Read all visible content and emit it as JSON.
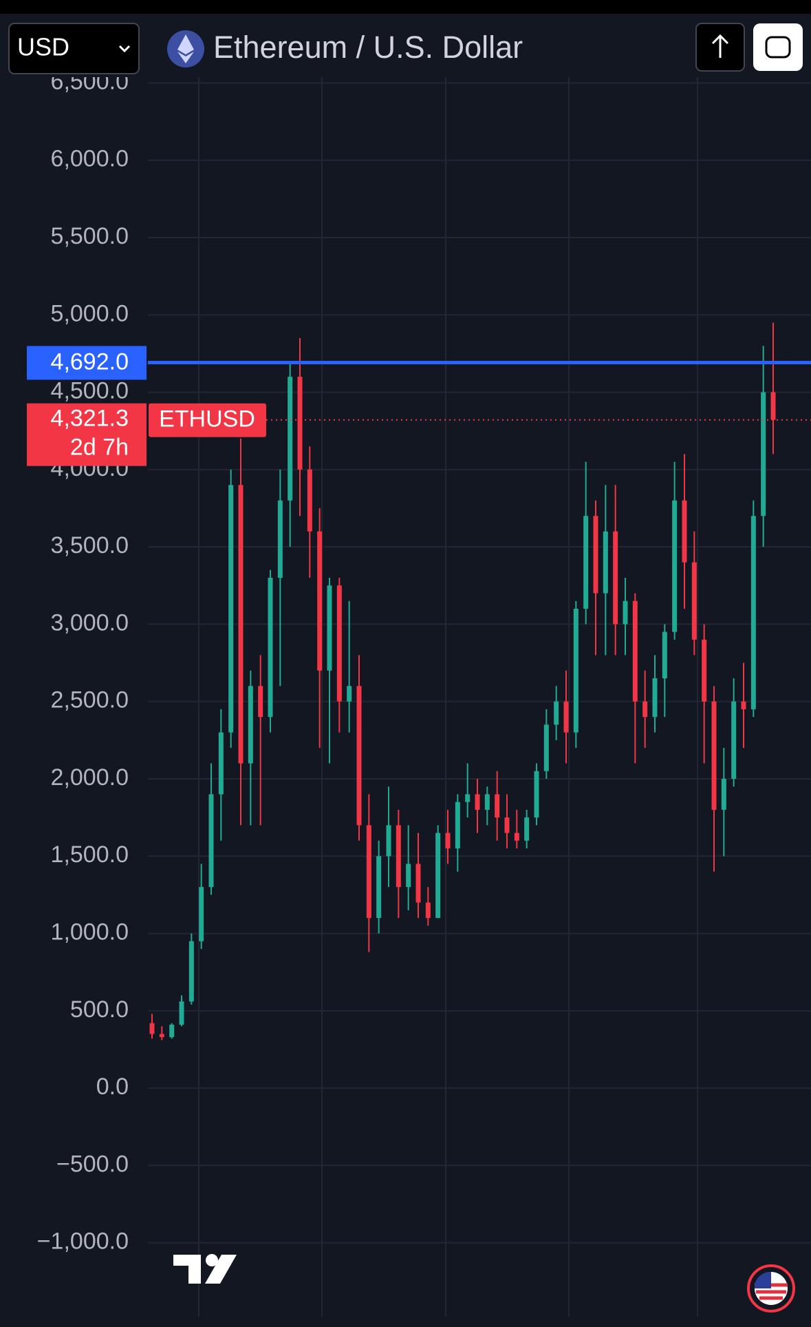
{
  "header": {
    "currency": "USD",
    "title": "Ethereum / U.S. Dollar"
  },
  "chart_data": {
    "type": "candlestick",
    "up_color": "#22ab94",
    "down_color": "#f23645",
    "open": [
      420,
      350,
      330,
      410,
      560,
      950,
      1300,
      1900,
      2300,
      3900,
      2100,
      2600,
      2400,
      3300,
      3800,
      4600,
      4000,
      3600,
      2700,
      3250,
      2500,
      2600,
      1700,
      1100,
      1500,
      1700,
      1300,
      1450,
      1200,
      1100,
      1650,
      1550,
      1850,
      1900,
      1800,
      1900,
      1750,
      1650,
      1600,
      1750,
      2050,
      2350,
      2500,
      2300,
      3100,
      3700,
      3200,
      3600,
      3000,
      3150,
      2500,
      2400,
      2650,
      2950,
      3800,
      3400,
      2900,
      2500,
      1800,
      2000,
      2500,
      2450,
      3700,
      4500
    ],
    "high": [
      480,
      400,
      420,
      600,
      1000,
      1450,
      2100,
      2450,
      4000,
      4200,
      2700,
      2800,
      3350,
      4000,
      4700,
      4850,
      4150,
      3750,
      3300,
      3300,
      3150,
      2800,
      1900,
      1600,
      1950,
      1800,
      1700,
      1650,
      1300,
      1700,
      1800,
      1900,
      2100,
      2000,
      1950,
      2050,
      1900,
      1800,
      1800,
      2100,
      2450,
      2600,
      2700,
      3150,
      4050,
      3800,
      3900,
      3900,
      3300,
      3200,
      2700,
      2800,
      3000,
      4050,
      4100,
      3600,
      3000,
      2600,
      2200,
      2650,
      2750,
      3800,
      4800,
      4950
    ],
    "low": [
      320,
      310,
      320,
      400,
      540,
      900,
      1250,
      1600,
      2200,
      1700,
      1700,
      1700,
      2300,
      2600,
      3500,
      3700,
      3300,
      2200,
      2100,
      2300,
      2300,
      1600,
      880,
      1000,
      1300,
      1100,
      1150,
      1100,
      1050,
      1100,
      1450,
      1400,
      1750,
      1650,
      1700,
      1600,
      1550,
      1550,
      1550,
      1700,
      2000,
      2250,
      2100,
      2200,
      3000,
      2800,
      2800,
      2800,
      2800,
      2100,
      2200,
      2300,
      2400,
      2900,
      3100,
      2800,
      2100,
      1400,
      1500,
      1950,
      2200,
      2400,
      3500,
      4100
    ],
    "close": [
      350,
      330,
      410,
      560,
      950,
      1300,
      1900,
      2300,
      3900,
      2100,
      2600,
      2400,
      3300,
      3800,
      4600,
      4000,
      3600,
      2700,
      3250,
      2500,
      2600,
      1700,
      1100,
      1500,
      1700,
      1300,
      1450,
      1200,
      1100,
      1650,
      1550,
      1850,
      1900,
      1800,
      1900,
      1750,
      1650,
      1600,
      1750,
      2050,
      2350,
      2500,
      2300,
      3100,
      3700,
      3200,
      3600,
      3000,
      3150,
      2500,
      2400,
      2650,
      2950,
      3800,
      3400,
      2900,
      2500,
      1800,
      2000,
      2500,
      2450,
      3700,
      4500,
      4321.3
    ],
    "ylim": [
      -1478,
      6542
    ],
    "yticks": [
      {
        "value": -1000,
        "label": "−1,000.0"
      },
      {
        "value": -500,
        "label": "−500.0"
      },
      {
        "value": 0,
        "label": "0.0"
      },
      {
        "value": 500,
        "label": "500.0"
      },
      {
        "value": 1000,
        "label": "1,000.0"
      },
      {
        "value": 1500,
        "label": "1,500.0"
      },
      {
        "value": 2000,
        "label": "2,000.0"
      },
      {
        "value": 2500,
        "label": "2,500.0"
      },
      {
        "value": 3000,
        "label": "3,000.0"
      },
      {
        "value": 3500,
        "label": "3,500.0"
      },
      {
        "value": 4000,
        "label": "4,000.0"
      },
      {
        "value": 4500,
        "label": "4,500.0"
      },
      {
        "value": 5000,
        "label": "5,000.0"
      },
      {
        "value": 5500,
        "label": "5,500.0"
      },
      {
        "value": 6000,
        "label": "6,000.0"
      },
      {
        "value": 6500,
        "label": "6,500.0"
      }
    ],
    "grid": true,
    "price_line": {
      "value": 4692.0,
      "label": "4,692.0",
      "color": "#2962ff"
    },
    "last_price": {
      "name": "ETHUSD",
      "value": 4321.3,
      "label": "4,321.3",
      "countdown": "2d 7h",
      "color": "#f23645"
    }
  }
}
